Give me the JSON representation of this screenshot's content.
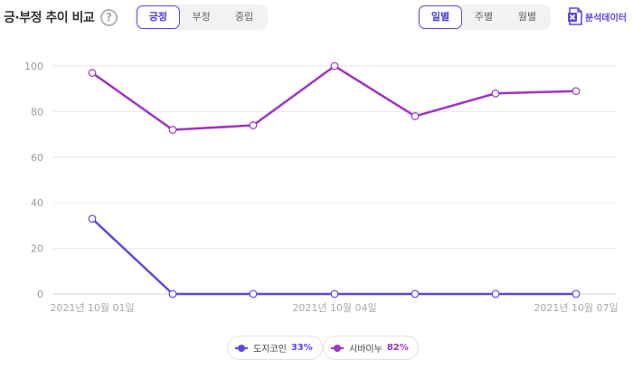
{
  "header": {
    "title": "긍·부정 추이 비교",
    "help_glyph": "?",
    "sentiment_tabs": [
      {
        "label": "긍정",
        "active": true
      },
      {
        "label": "부정",
        "active": false
      },
      {
        "label": "중립",
        "active": false
      }
    ],
    "period_tabs": [
      {
        "label": "일별",
        "active": true
      },
      {
        "label": "주별",
        "active": false
      },
      {
        "label": "월별",
        "active": false
      }
    ],
    "export_label": "분석데이터",
    "export_icon": "excel-icon"
  },
  "legend": [
    {
      "name": "도지코인",
      "percent": "33%"
    },
    {
      "name": "시바이누",
      "percent": "82%"
    }
  ],
  "chart_data": {
    "type": "line",
    "x": [
      "2021-10-01",
      "2021-10-02",
      "2021-10-03",
      "2021-10-04",
      "2021-10-05",
      "2021-10-06",
      "2021-10-07"
    ],
    "x_tick_labels": [
      "2021년 10월 01일",
      "2021년 10월 04일",
      "2021년 10월 07일"
    ],
    "ylim": [
      0,
      100
    ],
    "y_ticks": [
      0,
      20,
      40,
      60,
      80,
      100
    ],
    "grid": true,
    "legend_position": "bottom-center",
    "series": [
      {
        "name": "도지코인",
        "color": "#5b49e5",
        "values": [
          33,
          0,
          0,
          0,
          0,
          0,
          0
        ]
      },
      {
        "name": "시바이누",
        "color": "#a033c4",
        "values": [
          97,
          72,
          74,
          100,
          78,
          88,
          89
        ]
      }
    ]
  }
}
